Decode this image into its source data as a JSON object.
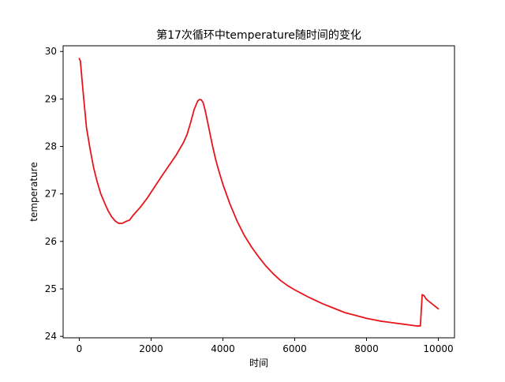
{
  "chart_data": {
    "type": "line",
    "title": "第17次循环中temperature随时间的变化",
    "xlabel": "时间",
    "ylabel": "temperature",
    "xlim": [
      -450,
      10450
    ],
    "ylim": [
      23.97,
      30.12
    ],
    "xticks": [
      0,
      2000,
      4000,
      6000,
      8000,
      10000
    ],
    "yticks": [
      24,
      25,
      26,
      27,
      28,
      29,
      30
    ],
    "grid": false,
    "series": [
      {
        "color": "#e8141c",
        "points": [
          [
            0,
            29.85
          ],
          [
            30,
            29.8
          ],
          [
            100,
            29.2
          ],
          [
            200,
            28.4
          ],
          [
            300,
            27.95
          ],
          [
            400,
            27.55
          ],
          [
            500,
            27.25
          ],
          [
            600,
            27.0
          ],
          [
            700,
            26.82
          ],
          [
            800,
            26.65
          ],
          [
            900,
            26.52
          ],
          [
            1000,
            26.43
          ],
          [
            1100,
            26.38
          ],
          [
            1200,
            26.38
          ],
          [
            1300,
            26.42
          ],
          [
            1400,
            26.45
          ],
          [
            1500,
            26.55
          ],
          [
            1700,
            26.72
          ],
          [
            1900,
            26.92
          ],
          [
            2100,
            27.15
          ],
          [
            2300,
            27.38
          ],
          [
            2500,
            27.6
          ],
          [
            2700,
            27.82
          ],
          [
            2900,
            28.08
          ],
          [
            3000,
            28.25
          ],
          [
            3100,
            28.5
          ],
          [
            3200,
            28.78
          ],
          [
            3300,
            28.96
          ],
          [
            3350,
            28.99
          ],
          [
            3400,
            28.98
          ],
          [
            3450,
            28.92
          ],
          [
            3500,
            28.78
          ],
          [
            3600,
            28.42
          ],
          [
            3700,
            28.05
          ],
          [
            3800,
            27.72
          ],
          [
            3900,
            27.45
          ],
          [
            4000,
            27.2
          ],
          [
            4200,
            26.78
          ],
          [
            4400,
            26.42
          ],
          [
            4600,
            26.12
          ],
          [
            4800,
            25.88
          ],
          [
            5000,
            25.67
          ],
          [
            5200,
            25.48
          ],
          [
            5400,
            25.32
          ],
          [
            5600,
            25.18
          ],
          [
            5800,
            25.07
          ],
          [
            6000,
            24.98
          ],
          [
            6200,
            24.9
          ],
          [
            6400,
            24.82
          ],
          [
            6600,
            24.75
          ],
          [
            6800,
            24.68
          ],
          [
            7000,
            24.62
          ],
          [
            7200,
            24.56
          ],
          [
            7400,
            24.5
          ],
          [
            7600,
            24.46
          ],
          [
            7800,
            24.42
          ],
          [
            8000,
            24.38
          ],
          [
            8200,
            24.35
          ],
          [
            8400,
            24.32
          ],
          [
            8600,
            24.3
          ],
          [
            8800,
            24.28
          ],
          [
            9000,
            24.26
          ],
          [
            9200,
            24.24
          ],
          [
            9400,
            24.22
          ],
          [
            9500,
            24.22
          ],
          [
            9550,
            24.88
          ],
          [
            9600,
            24.86
          ],
          [
            9650,
            24.8
          ],
          [
            9700,
            24.76
          ],
          [
            9800,
            24.7
          ],
          [
            9900,
            24.64
          ],
          [
            10000,
            24.58
          ]
        ]
      }
    ]
  }
}
